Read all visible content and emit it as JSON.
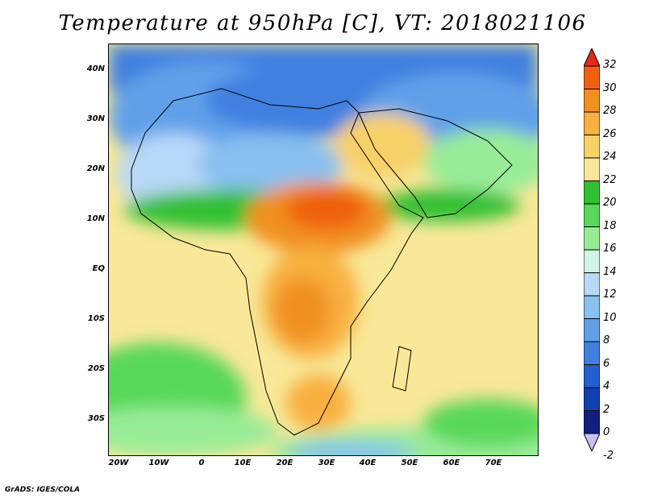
{
  "title": "Temperature at 950hPa [C], VT: 2018021106",
  "footer": "GrADS: IGES/COLA",
  "lat_labels": [
    "40N",
    "30N",
    "20N",
    "10N",
    "EQ",
    "10S",
    "20S",
    "30S"
  ],
  "lon_labels": [
    "20W",
    "10W",
    "0",
    "10E",
    "20E",
    "30E",
    "40E",
    "50E",
    "60E",
    "70E"
  ],
  "colorbar": {
    "labels": [
      "32",
      "30",
      "28",
      "26",
      "24",
      "22",
      "20",
      "18",
      "16",
      "14",
      "12",
      "10",
      "8",
      "6",
      "4",
      "2",
      "0",
      "-2"
    ],
    "colors": [
      "#e82818",
      "#f06010",
      "#f09020",
      "#f8b040",
      "#f8d068",
      "#f8e898",
      "#30c030",
      "#58d858",
      "#98ec98",
      "#d0f4e8",
      "#b8d8f8",
      "#88c0f0",
      "#60a0e8",
      "#4080e0",
      "#2060d0",
      "#1040b0",
      "#102080",
      "#c8c0f0"
    ]
  }
}
